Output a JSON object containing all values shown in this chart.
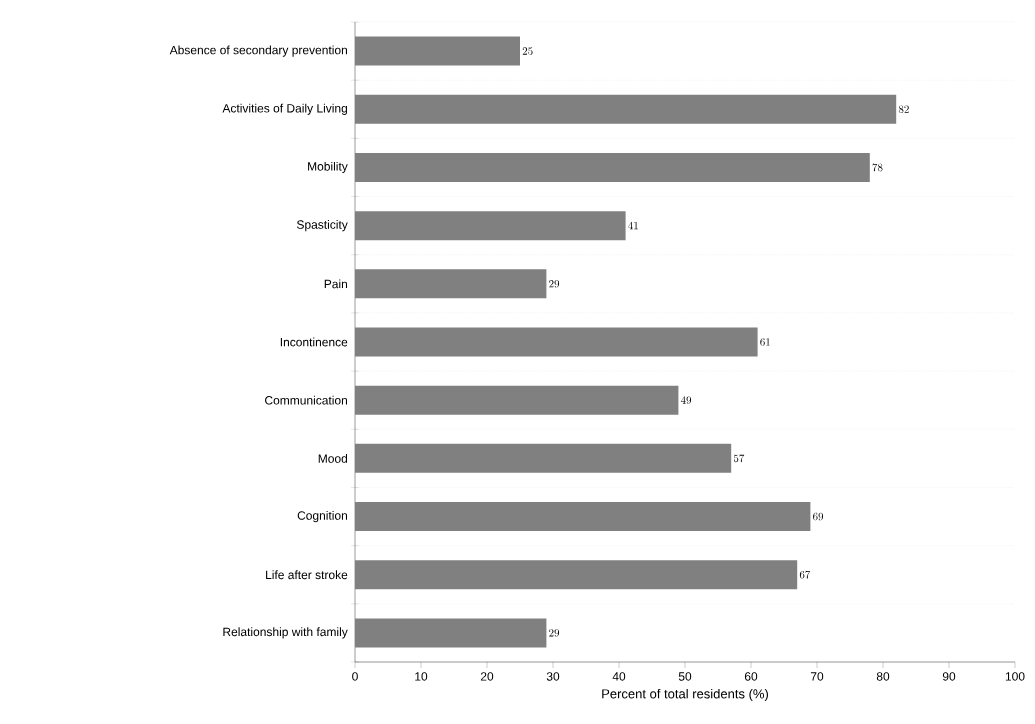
{
  "chart_data": {
    "type": "bar",
    "orientation": "horizontal",
    "xlabel": "Percent of total residents (%)",
    "categories": [
      "Absence of secondary prevention",
      "Activities of Daily Living",
      "Mobility",
      "Spasticity",
      "Pain",
      "Incontinence",
      "Communication",
      "Mood",
      "Cognition",
      "Life after stroke",
      "Relationship with family"
    ],
    "values": [
      25,
      82,
      78,
      41,
      29,
      61,
      49,
      57,
      69,
      67,
      29
    ],
    "color": "#808080",
    "xlim": [
      0,
      100
    ],
    "xticks": [
      0,
      10,
      20,
      30,
      40,
      50,
      60,
      70,
      80,
      90,
      100
    ],
    "data_labels": true,
    "grid": "y"
  }
}
